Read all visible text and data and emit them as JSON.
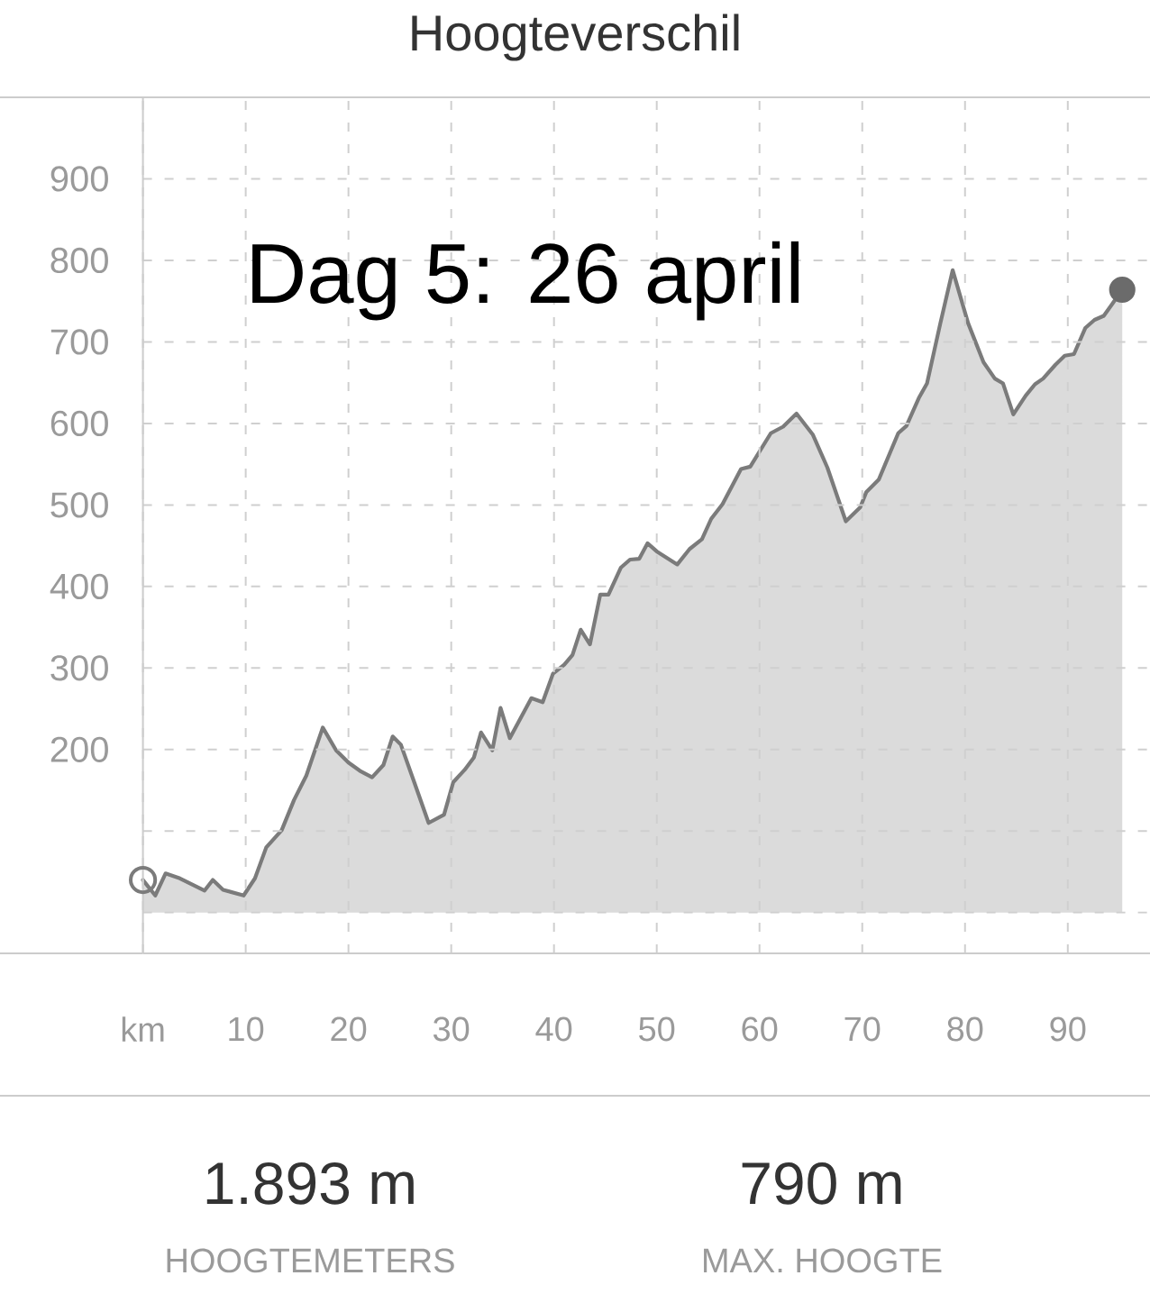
{
  "chart_data": {
    "type": "area",
    "title": "Hoogteverschil",
    "annotations": [
      "Dag 5: 26 april",
      "1.893 m",
      "HOOGTEMETERS",
      "790 m",
      "MAX. HOOGTE"
    ],
    "xlim": [
      0,
      98
    ],
    "ylim": [
      -50,
      1000
    ],
    "xticks": [
      {
        "value": 0,
        "label": "km"
      },
      10,
      20,
      30,
      40,
      50,
      60,
      70,
      80,
      90
    ],
    "yticks": [
      {
        "value": 0,
        "label": null
      },
      {
        "value": 100,
        "label": null
      },
      200,
      300,
      400,
      500,
      600,
      700,
      800,
      900
    ],
    "grid": true,
    "series": [
      {
        "color": "#7b7b7b",
        "x": [
          0,
          1.2,
          2.2,
          3.6,
          6.0,
          6.8,
          7.8,
          9.8,
          10.9,
          12.0,
          13.5,
          14.7,
          15.9,
          17.5,
          18.8,
          20.0,
          21.1,
          22.3,
          23.4,
          24.3,
          25.1,
          26.4,
          27.8,
          29.3,
          30.2,
          31.3,
          32.2,
          32.9,
          34.0,
          34.8,
          35.7,
          37.8,
          38.9,
          39.9,
          41.0,
          41.8,
          42.6,
          43.5,
          44.5,
          45.3,
          46.5,
          47.4,
          48.3,
          49.1,
          50.0,
          52.0,
          53.2,
          54.4,
          55.3,
          56.4,
          58.2,
          59.1,
          61.1,
          62.3,
          63.6,
          65.2,
          66.6,
          68.4,
          69.8,
          70.4,
          71.6,
          73.5,
          74.3,
          75.5,
          76.3,
          77.6,
          78.8,
          80.3,
          81.8,
          82.9,
          83.7,
          84.7,
          85.9,
          86.8,
          87.6,
          88.8,
          89.7,
          90.6,
          91.7,
          92.6,
          93.5,
          94.3,
          95.3
        ],
        "values": [
          40,
          21,
          48,
          42,
          27,
          40,
          28,
          21,
          42,
          80,
          101,
          138,
          168,
          227,
          199,
          184,
          174,
          166,
          181,
          216,
          206,
          160,
          110,
          120,
          160,
          175,
          190,
          221,
          199,
          251,
          214,
          263,
          258,
          293,
          304,
          316,
          347,
          329,
          390,
          390,
          423,
          433,
          434,
          453,
          443,
          427,
          446,
          458,
          483,
          501,
          544,
          547,
          588,
          596,
          612,
          586,
          546,
          480,
          497,
          516,
          531,
          588,
          597,
          631,
          649,
          723,
          788,
          723,
          675,
          655,
          649,
          611,
          634,
          648,
          655,
          672,
          683,
          685,
          717,
          727,
          732,
          746,
          764
        ]
      },
      {
        "type": "scatter",
        "marker": "circle",
        "x": [
          0
        ],
        "values": [
          40
        ]
      },
      {
        "type": "scatter",
        "marker": "circle",
        "color": "#6b6b6b",
        "x": [
          95.3
        ],
        "values": [
          764
        ]
      }
    ]
  }
}
